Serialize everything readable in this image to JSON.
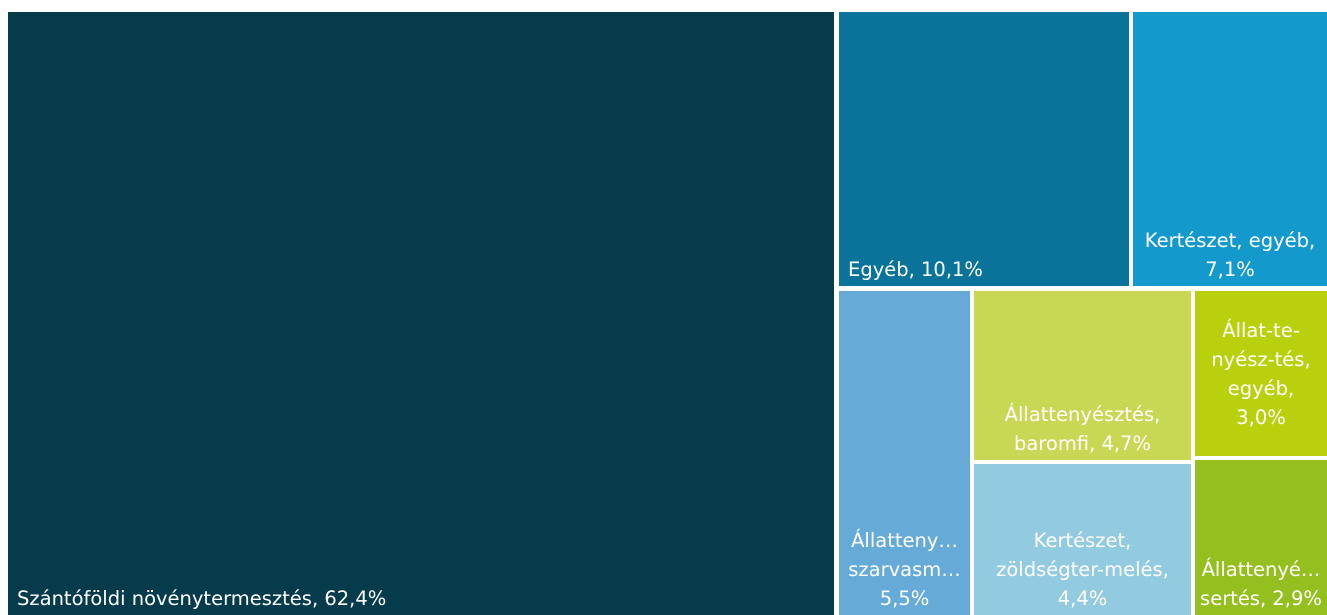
{
  "chart_data": {
    "type": "treemap",
    "title": "",
    "items": [
      {
        "key": "szantofoldi",
        "label": "Szántóföldi növénytermesztés, 62,4%",
        "name": "Szántóföldi növénytermesztés",
        "value": 62.4,
        "color": "#063b4b"
      },
      {
        "key": "egyeb",
        "label": "Egyéb, 10,1%",
        "name": "Egyéb",
        "value": 10.1,
        "color": "#09739a"
      },
      {
        "key": "kerteszet_egyeb",
        "label": "Kertészet, egyéb,\n7,1%",
        "name": "Kertészet, egyéb",
        "value": 7.1,
        "color": "#1399cb"
      },
      {
        "key": "szarvasmarha",
        "label": "Állatteny…\nszarvasm…\n5,5%",
        "name": "Állattenyésztés, szarvasmarha",
        "value": 5.5,
        "color": "#66aad7"
      },
      {
        "key": "baromfi",
        "label": "Állattenyésztés,\nbaromfi, 4,7%",
        "name": "Állattenyésztés, baromfi",
        "value": 4.7,
        "color": "#c8d855"
      },
      {
        "key": "zoldseg",
        "label": "Kertészet,\nzöldségter-melés,\n4,4%",
        "name": "Kertészet, zöldségtermelés",
        "value": 4.4,
        "color": "#92cadf"
      },
      {
        "key": "allat_egyeb",
        "label": "Állat-te-\nnyész-tés,\negyéb,\n3,0%",
        "name": "Állattenyésztés, egyéb",
        "value": 3.0,
        "color": "#b9d10d"
      },
      {
        "key": "sertes",
        "label": "Állattenyé…\nsertés, 2,9%",
        "name": "Állattenyésztés, sertés",
        "value": 2.9,
        "color": "#94bf1e"
      }
    ]
  }
}
